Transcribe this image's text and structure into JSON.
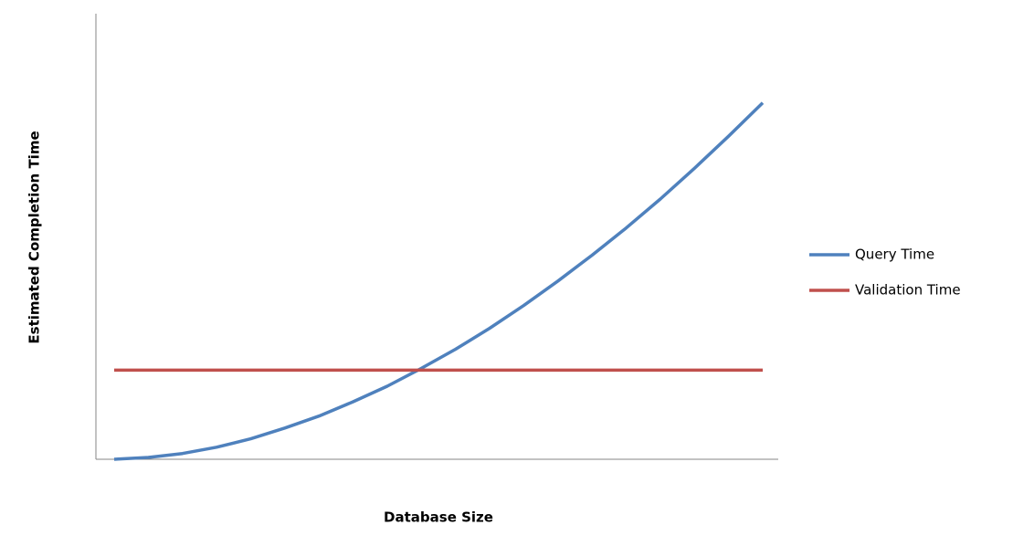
{
  "chart_data": {
    "type": "line",
    "xlabel": "Database Size",
    "ylabel": "Estimated Completion Time",
    "categories": [
      null,
      null,
      null,
      null,
      null,
      null,
      null,
      null,
      null,
      null,
      null,
      null,
      null,
      null,
      null,
      null,
      null,
      null,
      null,
      null
    ],
    "series": [
      {
        "name": "Query Time",
        "color": "#4f81bd",
        "values": [
          0,
          0.4,
          1.3,
          2.7,
          4.6,
          7.0,
          9.7,
          12.9,
          16.4,
          20.4,
          24.7,
          29.4,
          34.5,
          40.0,
          45.8,
          51.9,
          58.4,
          65.3,
          72.5,
          80.0
        ]
      },
      {
        "name": "Validation Time",
        "color": "#c0504d",
        "values": [
          20,
          20,
          20,
          20,
          20,
          20,
          20,
          20,
          20,
          20,
          20,
          20,
          20,
          20,
          20,
          20,
          20,
          20,
          20,
          20
        ]
      }
    ],
    "ylim": [
      0,
      100
    ],
    "grid": false,
    "legend": "right"
  }
}
